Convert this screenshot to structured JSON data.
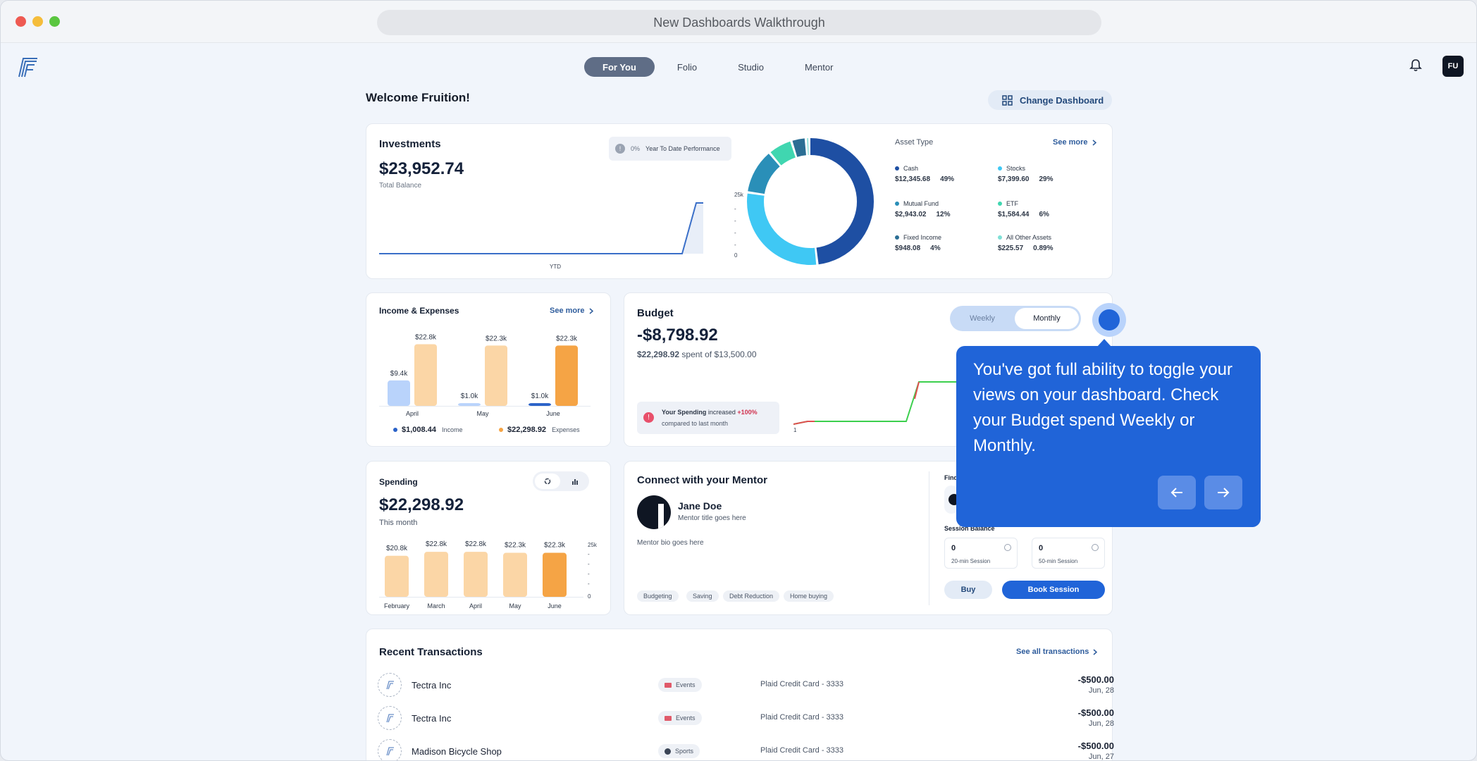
{
  "window": {
    "url_title": "New Dashboards Walkthrough"
  },
  "nav": {
    "tabs": [
      "For You",
      "Folio",
      "Studio",
      "Mentor"
    ],
    "avatar_initials": "FU"
  },
  "header": {
    "welcome": "Welcome Fruition!",
    "change_dashboard": "Change Dashboard"
  },
  "investments": {
    "title": "Investments",
    "balance": "$23,952.74",
    "balance_label": "Total Balance",
    "ytd_pct": "0%",
    "ytd_label": "Year To Date Performance",
    "x_label": "YTD",
    "y_top": "25k",
    "y_zero": "0",
    "asset_title": "Asset Type",
    "see_more": "See more",
    "assets": [
      {
        "name": "Cash",
        "value": "$12,345.68",
        "pct": "49%",
        "color": "#1e4fa3"
      },
      {
        "name": "Stocks",
        "value": "$7,399.60",
        "pct": "29%",
        "color": "#3fc8f4"
      },
      {
        "name": "Mutual Fund",
        "value": "$2,943.02",
        "pct": "12%",
        "color": "#2a8fb8"
      },
      {
        "name": "ETF",
        "value": "$1,584.44",
        "pct": "6%",
        "color": "#40d6b0"
      },
      {
        "name": "Fixed Income",
        "value": "$948.08",
        "pct": "4%",
        "color": "#2b6e94"
      },
      {
        "name": "All Other Assets",
        "value": "$225.57",
        "pct": "0.89%",
        "color": "#7fe0d6"
      }
    ]
  },
  "income_expenses": {
    "title": "Income & Expenses",
    "see_more": "See more",
    "months": [
      "April",
      "May",
      "June"
    ],
    "income": [
      9.4,
      1.0,
      1.0
    ],
    "income_labels": [
      "$9.4k",
      "$1.0k",
      "$1.0k"
    ],
    "expenses": [
      22.8,
      22.3,
      22.3
    ],
    "expense_labels": [
      "$22.8k",
      "$22.3k",
      "$22.3k"
    ],
    "income_total": "$1,008.44",
    "income_label": "Income",
    "expense_total": "$22,298.92",
    "expense_label": "Expenses"
  },
  "budget": {
    "title": "Budget",
    "toggle": [
      "Weekly",
      "Monthly"
    ],
    "amount": "-$8,798.92",
    "spent": "$22,298.92",
    "spent_of": "spent of $13,500.00",
    "spend_note_a": "Your Spending",
    "spend_note_b": "increased",
    "spend_note_c": "+100%",
    "spend_note_d": "compared to last month",
    "axis_first": "1"
  },
  "spending": {
    "title": "Spending",
    "amount": "$22,298.92",
    "period": "This month",
    "months": [
      "February",
      "March",
      "April",
      "May",
      "June"
    ],
    "values": [
      20.8,
      22.8,
      22.8,
      22.3,
      22.3
    ],
    "labels": [
      "$20.8k",
      "$22.8k",
      "$22.8k",
      "$22.3k",
      "$22.3k"
    ],
    "y_top": "25k",
    "y_zero": "0"
  },
  "mentor": {
    "title": "Connect with your Mentor",
    "name": "Jane Doe",
    "role": "Mentor title goes here",
    "bio": "Mentor bio goes here",
    "tags": [
      "Budgeting",
      "Saving",
      "Debt Reduction",
      "Home buying"
    ],
    "find_label": "Find",
    "session_balance": "Session Balance",
    "s20_count": "0",
    "s20_label": "20-min Session",
    "s50_count": "0",
    "s50_label": "50-min Session",
    "buy": "Buy",
    "book": "Book Session"
  },
  "popover": {
    "text": "You've got full ability to toggle your views on your dashboard. Check your Budget spend Weekly or Monthly."
  },
  "transactions": {
    "title": "Recent Transactions",
    "see_all": "See all transactions",
    "rows": [
      {
        "name": "Tectra Inc",
        "category": "Events",
        "account": "Plaid Credit Card - 3333",
        "amount": "-$500.00",
        "date": "Jun, 28"
      },
      {
        "name": "Tectra Inc",
        "category": "Events",
        "account": "Plaid Credit Card - 3333",
        "amount": "-$500.00",
        "date": "Jun, 28"
      },
      {
        "name": "Madison Bicycle Shop",
        "category": "Sports",
        "account": "Plaid Credit Card - 3333",
        "amount": "-$500.00",
        "date": "Jun, 27"
      }
    ]
  }
}
